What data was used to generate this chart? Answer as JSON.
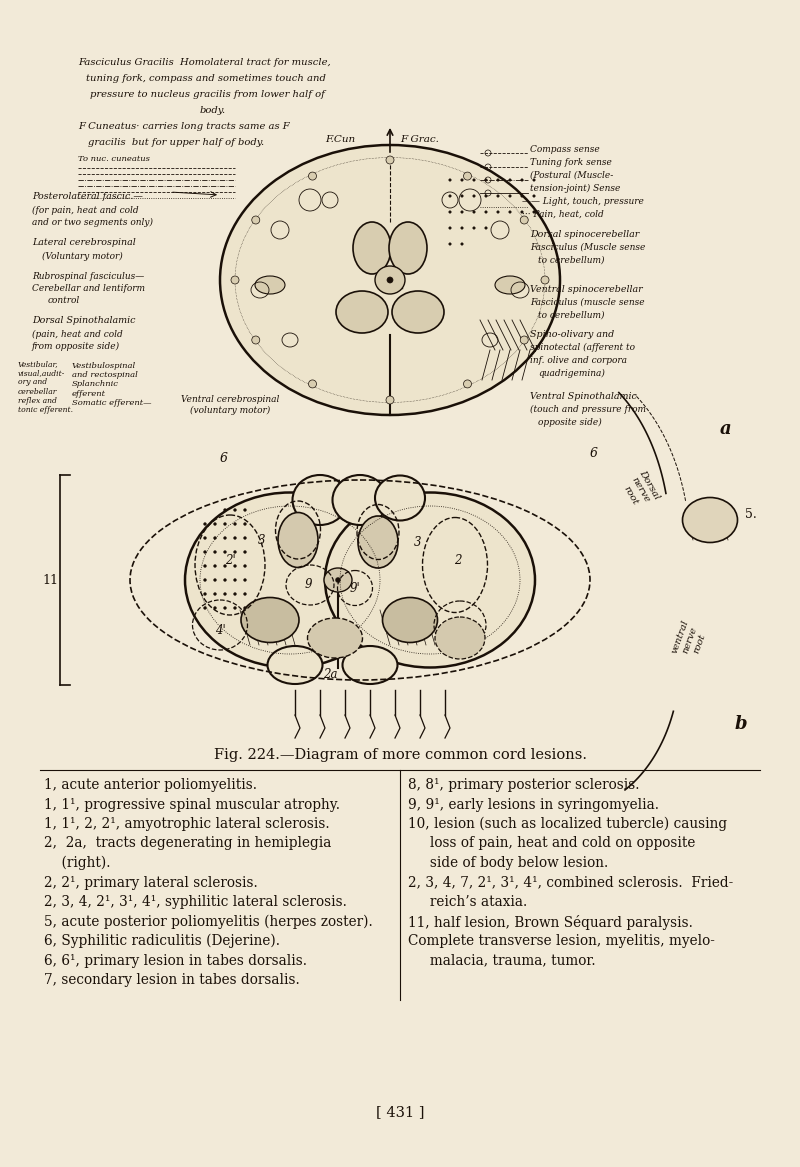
{
  "background_color": "#f2ead8",
  "page_width": 8.0,
  "page_height": 11.67,
  "dpi": 100,
  "figure_caption": "Fig. 224.—Diagram of more common cord lesions.",
  "caption_fontsize": 10.5,
  "left_column_lines": [
    [
      "1, acute anterior poliomyelitis.",
      false
    ],
    [
      "1, 1¹, progressive spinal muscular atrophy.",
      false
    ],
    [
      "1, 1¹, 2, 2¹, amyotrophic lateral sclerosis.",
      false
    ],
    [
      "2,  2a,  tracts degenerating in hemiplegia",
      false
    ],
    [
      "    (right).",
      false
    ],
    [
      "2, 2¹, primary lateral sclerosis.",
      false
    ],
    [
      "2, 3, 4, 2¹, 3¹, 4¹, syphilitic lateral sclerosis.",
      false
    ],
    [
      "5, acute posterior poliomyelitis (herpes zoster).",
      false
    ],
    [
      "6, Syphilitic radiculitis (Dejerine).",
      false
    ],
    [
      "6, 6¹, primary lesion in tabes dorsalis.",
      false
    ],
    [
      "7, secondary lesion in tabes dorsalis.",
      false
    ]
  ],
  "right_column_lines": [
    "8, 8¹, primary posterior sclerosis.",
    "9, 9¹, early lesions in syringomyelia.",
    "10, lesion (such as localized tubercle) causing",
    "     loss of pain, heat and cold on opposite",
    "     side of body below lesion.",
    "2, 3, 4, 7, 2¹, 3¹, 4¹, combined sclerosis.  Fried-",
    "     reich’s ataxia.",
    "11, half lesion, Brown Séquard paralysis.",
    "Complete transverse lesion, myelitis, myelo-",
    "     malacia, trauma, tumor."
  ],
  "page_number": "[ 431 ]",
  "text_fontsize": 9.8
}
